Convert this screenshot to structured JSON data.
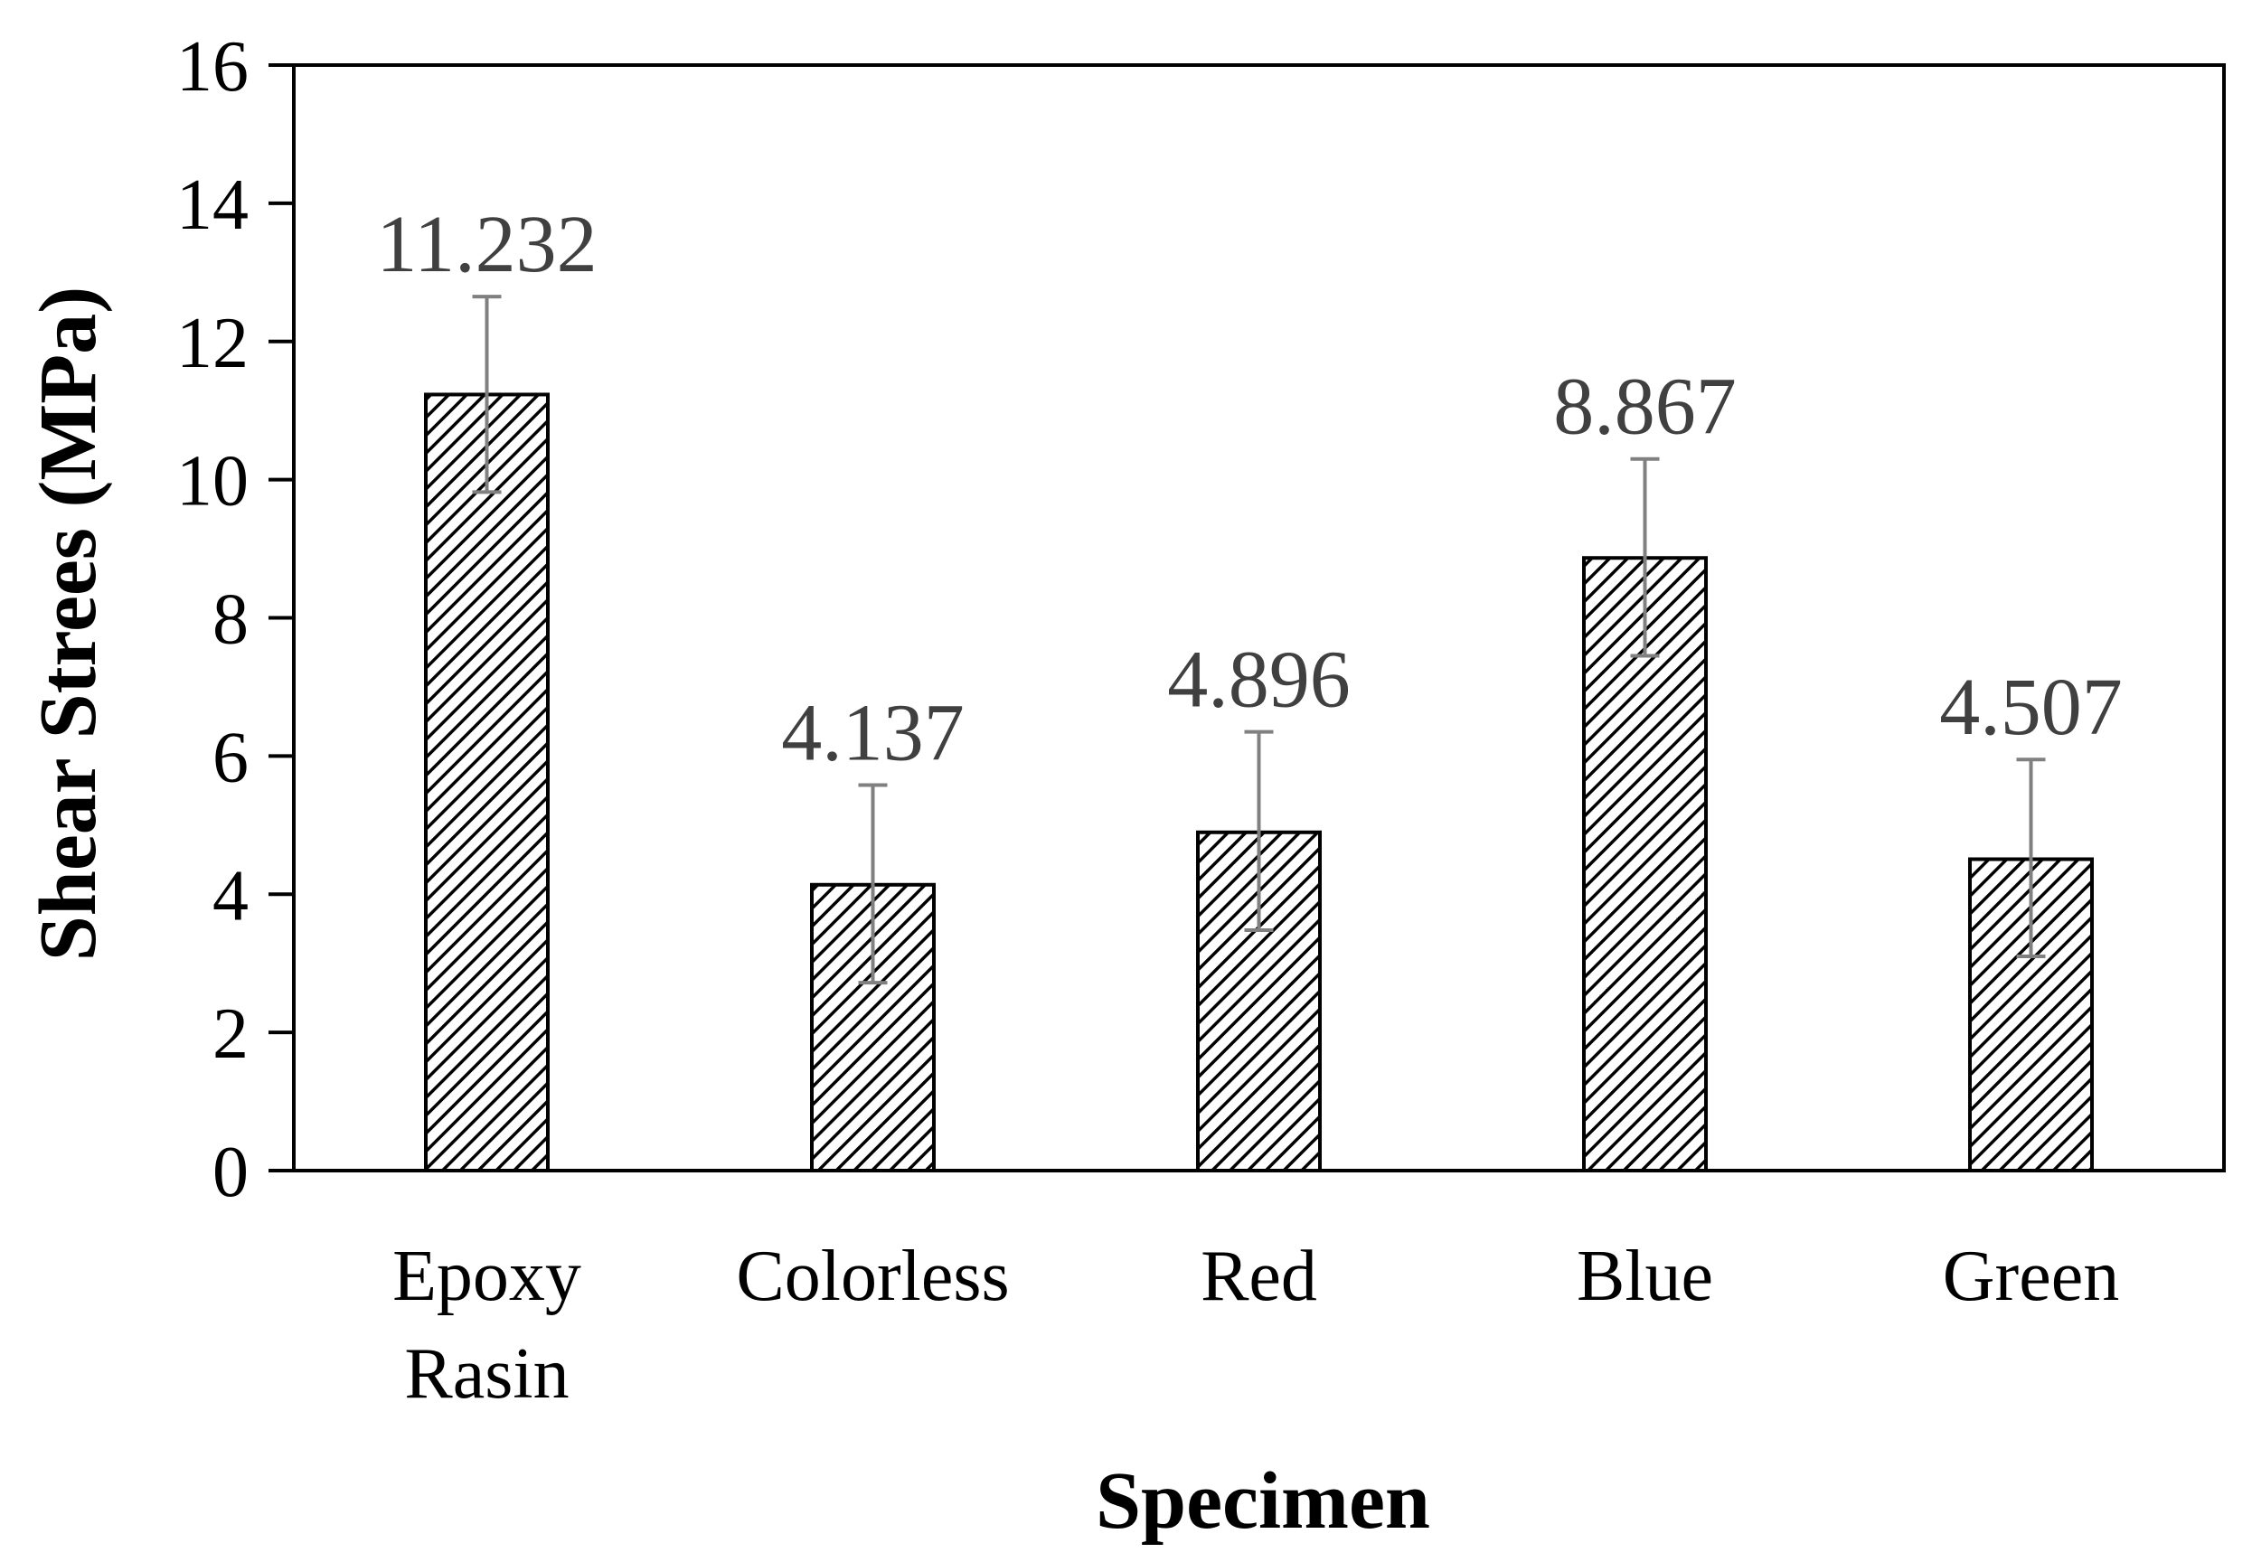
{
  "chart_data": {
    "type": "bar",
    "categories": [
      [
        "Epoxy",
        "Rasin"
      ],
      [
        "Colorless"
      ],
      [
        "Red"
      ],
      [
        "Blue"
      ],
      [
        "Green"
      ]
    ],
    "values": [
      11.232,
      4.137,
      4.896,
      8.867,
      4.507
    ],
    "value_labels": [
      "11.232",
      "4.137",
      "4.896",
      "8.867",
      "4.507"
    ],
    "error_upper": [
      12.65,
      5.58,
      6.35,
      10.3,
      5.95
    ],
    "error_lower": [
      9.82,
      2.72,
      3.48,
      7.45,
      3.1
    ],
    "ylim": [
      0,
      16
    ],
    "yticks": [
      "0",
      "2",
      "4",
      "6",
      "8",
      "10",
      "12",
      "14",
      "16"
    ],
    "xlabel": "Specimen",
    "ylabel": "Shear Strees (MPa)",
    "bar_pattern": "diagonal-hatch",
    "grid": false,
    "colors": {
      "bar_stroke": "#000000",
      "bar_fill": "#ffffff",
      "hatch": "#000000",
      "error_bar": "#808080",
      "data_label": "#404040"
    }
  }
}
